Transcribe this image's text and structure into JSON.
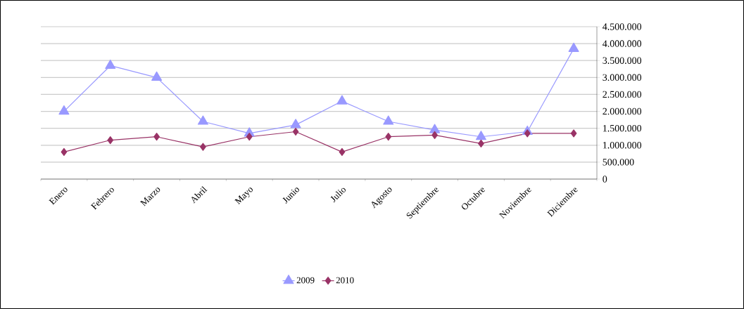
{
  "chart_data": {
    "type": "line",
    "categories": [
      "Enero",
      "Febrero",
      "Marzo",
      "Abril",
      "Mayo",
      "Junio",
      "Julio",
      "Agosto",
      "Septiembre",
      "Octubre",
      "Noviembre",
      "Diciembre"
    ],
    "series": [
      {
        "name": "2009",
        "color": "#9999ff",
        "marker": "triangle",
        "values": [
          2000000,
          3350000,
          3000000,
          1700000,
          1350000,
          1600000,
          2300000,
          1700000,
          1450000,
          1250000,
          1400000,
          3850000
        ]
      },
      {
        "name": "2010",
        "color": "#993366",
        "marker": "diamond",
        "values": [
          800000,
          1150000,
          1250000,
          950000,
          1250000,
          1400000,
          800000,
          1250000,
          1300000,
          1050000,
          1350000,
          1350000
        ]
      }
    ],
    "ylim": [
      0,
      4500000
    ],
    "yticks": [
      0,
      {
        "value": 500000,
        "label": "500.000"
      },
      {
        "value": 1000000,
        "label": "1.000.000"
      },
      {
        "value": 1500000,
        "label": "1.500.000"
      },
      {
        "value": 2000000,
        "label": "2.000.000"
      },
      {
        "value": 2500000,
        "label": "2.500.000"
      },
      {
        "value": 3000000,
        "label": "3.000.000"
      },
      {
        "value": 3500000,
        "label": "3.500.000"
      },
      {
        "value": 4000000,
        "label": "4.000.000"
      },
      {
        "value": 4500000,
        "label": "4.500.000"
      }
    ],
    "grid": "y",
    "legend": "bottom"
  }
}
